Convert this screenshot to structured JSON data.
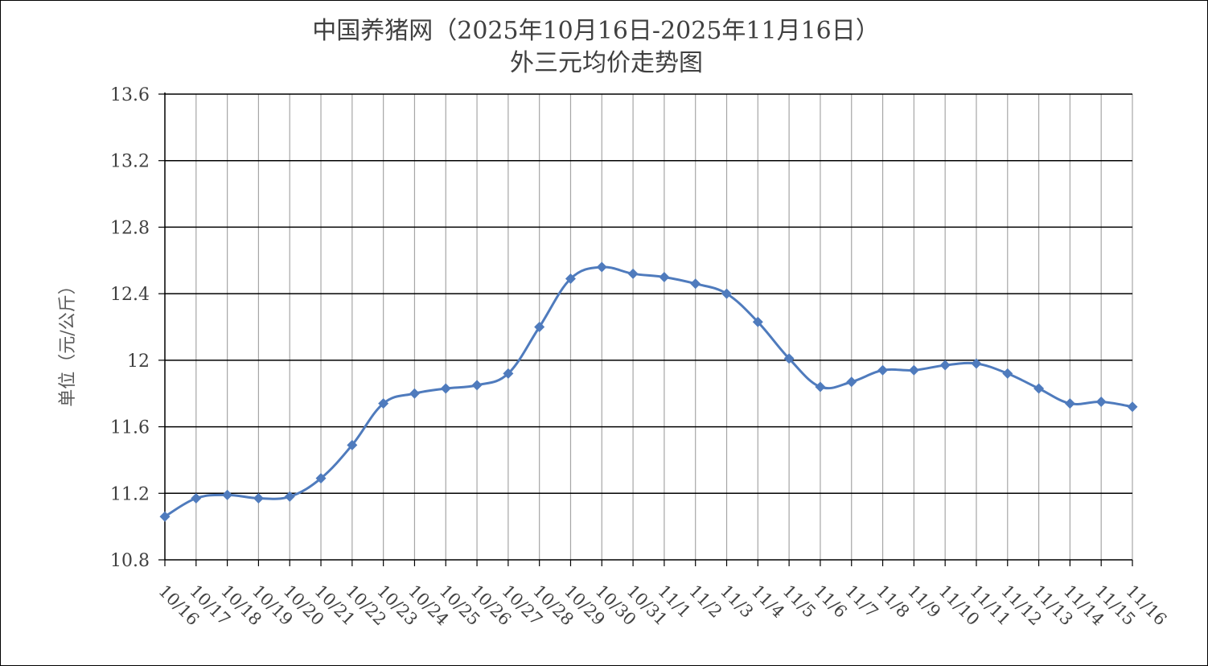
{
  "chart_data": {
    "type": "line",
    "title": "中国养猪网（2025年10月16日-2025年11月16日）",
    "subtitle": "外三元均价走势图",
    "xlabel": "",
    "ylabel": "单位（元/公斤）",
    "ylim": [
      10.8,
      13.6
    ],
    "yticks": [
      "10.8",
      "11.2",
      "11.6",
      "12",
      "12.4",
      "12.8",
      "13.2",
      "13.6"
    ],
    "grid": true,
    "legend": "none",
    "categories": [
      "10/16",
      "10/17",
      "10/18",
      "10/19",
      "10/20",
      "10/21",
      "10/22",
      "10/23",
      "10/24",
      "10/25",
      "10/26",
      "10/27",
      "10/28",
      "10/29",
      "10/30",
      "10/31",
      "11/1",
      "11/2",
      "11/3",
      "11/4",
      "11/5",
      "11/6",
      "11/7",
      "11/8",
      "11/9",
      "11/10",
      "11/11",
      "11/12",
      "11/13",
      "11/14",
      "11/15",
      "11/16"
    ],
    "series": [
      {
        "color": "#4f7bbd",
        "values": [
          11.06,
          11.17,
          11.19,
          11.17,
          11.18,
          11.29,
          11.49,
          11.74,
          11.8,
          11.83,
          11.85,
          11.92,
          12.2,
          12.49,
          12.56,
          12.52,
          12.5,
          12.46,
          12.4,
          12.23,
          12.01,
          11.84,
          11.87,
          11.94,
          11.94,
          11.97,
          11.98,
          11.92,
          11.83,
          11.74,
          11.75,
          11.72
        ]
      }
    ]
  }
}
